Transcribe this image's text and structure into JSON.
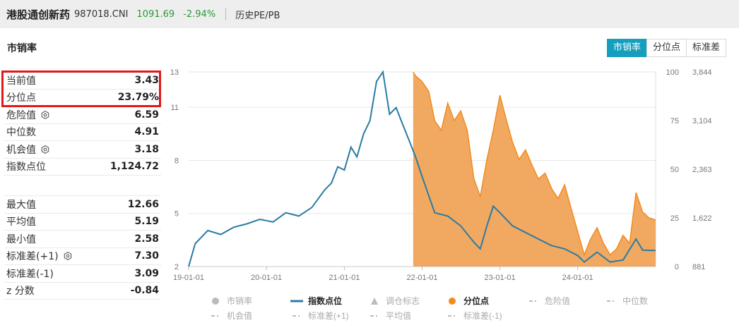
{
  "header": {
    "name": "港股通创新药",
    "code": "987018.CNI",
    "price": "1091.69",
    "change": "-2.94%",
    "history_link": "历史PE/PB"
  },
  "section_title": "市销率",
  "tabs": [
    {
      "label": "市销率",
      "active": true
    },
    {
      "label": "分位点",
      "active": false
    },
    {
      "label": "标准差",
      "active": false
    }
  ],
  "stats_top": [
    {
      "label": "当前值",
      "value": "3.43",
      "gear": false
    },
    {
      "label": "分位点",
      "value": "23.79%",
      "gear": false
    },
    {
      "label": "危险值",
      "value": "6.59",
      "gear": true
    },
    {
      "label": "中位数",
      "value": "4.91",
      "gear": false
    },
    {
      "label": "机会值",
      "value": "3.18",
      "gear": true
    },
    {
      "label": "指数点位",
      "value": "1,124.72",
      "gear": false
    }
  ],
  "stats_bottom": [
    {
      "label": "最大值",
      "value": "12.66",
      "gear": false
    },
    {
      "label": "平均值",
      "value": "5.19",
      "gear": false
    },
    {
      "label": "最小值",
      "value": "2.58",
      "gear": false
    },
    {
      "label": "标准差(+1)",
      "value": "7.30",
      "gear": true
    },
    {
      "label": "标准差(-1)",
      "value": "3.09",
      "gear": false
    },
    {
      "label": "z 分数",
      "value": "-0.84",
      "gear": false
    }
  ],
  "colors": {
    "index_line": "#2b7ba3",
    "percentile_fill": "#f0a050",
    "percentile_line": "#f28a1e",
    "tab_active": "#139fbd",
    "grid": "#e6e6e6",
    "highlight": "#e01a1a"
  },
  "chart_data": {
    "type": "line",
    "x_ticks": [
      "19-01-01",
      "20-01-01",
      "21-01-01",
      "22-01-01",
      "23-01-01",
      "24-01-01"
    ],
    "y_left_ticks": [
      "2",
      "5",
      "8",
      "11",
      "13"
    ],
    "y_mid_ticks": [
      "0",
      "25",
      "50",
      "75",
      "100"
    ],
    "y_right_ticks": [
      "881",
      "1,622",
      "2,363",
      "3,104",
      "3,844"
    ],
    "y_left_range": [
      2,
      13
    ],
    "y_mid_range": [
      0,
      100
    ],
    "y_right_range": [
      881,
      3844
    ],
    "x_range": [
      "2019-01-01",
      "2025-01-01"
    ],
    "series": [
      {
        "name": "指数点位",
        "axis": "right",
        "points": [
          [
            "2019-01-01",
            881
          ],
          [
            "2019-02-01",
            1230
          ],
          [
            "2019-04-01",
            1430
          ],
          [
            "2019-06-01",
            1370
          ],
          [
            "2019-08-01",
            1480
          ],
          [
            "2019-10-01",
            1530
          ],
          [
            "2019-12-01",
            1600
          ],
          [
            "2020-02-01",
            1560
          ],
          [
            "2020-04-01",
            1700
          ],
          [
            "2020-06-01",
            1650
          ],
          [
            "2020-08-01",
            1780
          ],
          [
            "2020-10-01",
            2050
          ],
          [
            "2020-11-01",
            2150
          ],
          [
            "2020-12-01",
            2400
          ],
          [
            "2021-01-01",
            2350
          ],
          [
            "2021-02-01",
            2700
          ],
          [
            "2021-03-01",
            2550
          ],
          [
            "2021-04-01",
            2900
          ],
          [
            "2021-05-01",
            3100
          ],
          [
            "2021-06-01",
            3700
          ],
          [
            "2021-07-01",
            3844
          ],
          [
            "2021-08-01",
            3200
          ],
          [
            "2021-09-01",
            3300
          ],
          [
            "2021-10-01",
            3050
          ],
          [
            "2021-11-01",
            2800
          ],
          [
            "2021-12-01",
            2550
          ],
          [
            "2022-01-01",
            2250
          ],
          [
            "2022-03-01",
            1700
          ],
          [
            "2022-05-01",
            1650
          ],
          [
            "2022-07-01",
            1500
          ],
          [
            "2022-09-01",
            1250
          ],
          [
            "2022-10-01",
            1150
          ],
          [
            "2022-11-01",
            1500
          ],
          [
            "2022-12-01",
            1800
          ],
          [
            "2023-01-01",
            1700
          ],
          [
            "2023-03-01",
            1500
          ],
          [
            "2023-05-01",
            1400
          ],
          [
            "2023-07-01",
            1300
          ],
          [
            "2023-09-01",
            1200
          ],
          [
            "2023-11-01",
            1150
          ],
          [
            "2024-01-01",
            1050
          ],
          [
            "2024-02-01",
            950
          ],
          [
            "2024-04-01",
            1100
          ],
          [
            "2024-06-01",
            950
          ],
          [
            "2024-08-01",
            980
          ],
          [
            "2024-10-01",
            1300
          ],
          [
            "2024-11-01",
            1130
          ],
          [
            "2025-01-01",
            1125
          ]
        ]
      },
      {
        "name": "分位点",
        "axis": "mid",
        "points": [
          [
            "2021-11-20",
            100
          ],
          [
            "2021-12-01",
            98
          ],
          [
            "2022-01-01",
            95
          ],
          [
            "2022-02-01",
            90
          ],
          [
            "2022-03-01",
            75
          ],
          [
            "2022-04-01",
            70
          ],
          [
            "2022-05-01",
            84
          ],
          [
            "2022-06-01",
            75
          ],
          [
            "2022-07-01",
            80
          ],
          [
            "2022-08-01",
            70
          ],
          [
            "2022-09-01",
            45
          ],
          [
            "2022-10-01",
            36
          ],
          [
            "2022-11-01",
            55
          ],
          [
            "2022-12-01",
            70
          ],
          [
            "2023-01-01",
            88
          ],
          [
            "2023-02-01",
            75
          ],
          [
            "2023-03-01",
            64
          ],
          [
            "2023-04-01",
            55
          ],
          [
            "2023-05-01",
            60
          ],
          [
            "2023-06-01",
            52
          ],
          [
            "2023-07-01",
            45
          ],
          [
            "2023-08-01",
            48
          ],
          [
            "2023-09-01",
            40
          ],
          [
            "2023-10-01",
            35
          ],
          [
            "2023-11-01",
            42
          ],
          [
            "2023-12-01",
            30
          ],
          [
            "2024-01-01",
            18
          ],
          [
            "2024-02-01",
            6
          ],
          [
            "2024-03-01",
            14
          ],
          [
            "2024-04-01",
            20
          ],
          [
            "2024-05-01",
            12
          ],
          [
            "2024-06-01",
            6
          ],
          [
            "2024-07-01",
            9
          ],
          [
            "2024-08-01",
            16
          ],
          [
            "2024-09-01",
            12
          ],
          [
            "2024-10-01",
            38
          ],
          [
            "2024-11-01",
            28
          ],
          [
            "2024-12-01",
            25
          ],
          [
            "2025-01-01",
            24
          ]
        ]
      }
    ],
    "legend": [
      {
        "label": "市销率",
        "marker": "circle",
        "color": "#bbbbbb"
      },
      {
        "label": "指数点位",
        "marker": "line",
        "color": "#2b7ba3"
      },
      {
        "label": "调仓标志",
        "marker": "triangle",
        "color": "#bbbbbb"
      },
      {
        "label": "分位点",
        "marker": "circle",
        "color": "#f28a1e"
      },
      {
        "label": "危险值",
        "marker": "dash",
        "color": "#bbbbbb"
      },
      {
        "label": "中位数",
        "marker": "dash",
        "color": "#bbbbbb"
      },
      {
        "label": "机会值",
        "marker": "dash",
        "color": "#bbbbbb"
      },
      {
        "label": "标准差(+1)",
        "marker": "dash",
        "color": "#bbbbbb"
      },
      {
        "label": "平均值",
        "marker": "dash",
        "color": "#bbbbbb"
      },
      {
        "label": "标准差(-1)",
        "marker": "dash",
        "color": "#bbbbbb"
      }
    ],
    "legend_position": "bottom"
  }
}
